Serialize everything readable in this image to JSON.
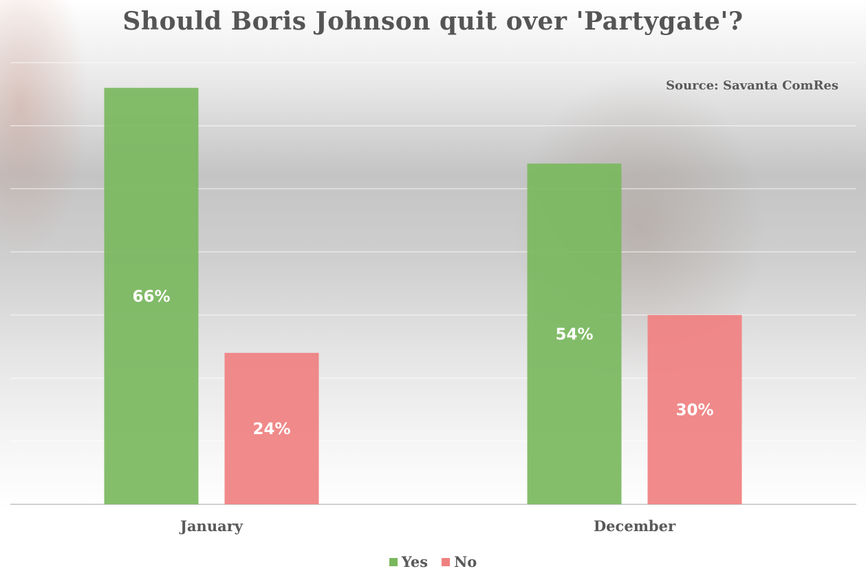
{
  "chart_data": {
    "type": "bar",
    "title": "Should Boris Johnson quit over 'Partygate'?",
    "source": "Source: Savanta ComRes",
    "categories": [
      "January",
      "December"
    ],
    "series": [
      {
        "name": "Yes",
        "values": [
          66,
          54
        ],
        "labels": [
          "66%",
          "54%"
        ],
        "color": "#7ab85e"
      },
      {
        "name": "No",
        "values": [
          24,
          30
        ],
        "labels": [
          "24%",
          "30%"
        ],
        "color": "#f08080"
      }
    ],
    "ylim": [
      0,
      70
    ],
    "grid": true,
    "legend": "bottom"
  }
}
